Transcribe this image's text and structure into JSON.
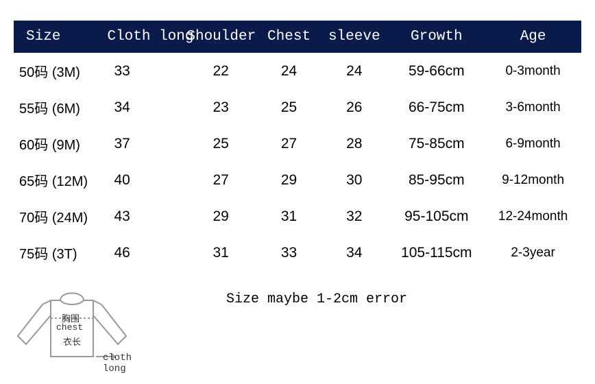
{
  "table": {
    "header_bg": "#0a1a4a",
    "header_fg": "#ffffff",
    "body_fg": "#000000",
    "columns": [
      "Size",
      "Cloth long",
      "Shoulder",
      "Chest",
      "sleeve",
      "Growth",
      "Age"
    ],
    "rows": [
      {
        "size_code": "50码",
        "size_alt": "(3M)",
        "cloth_long": "33",
        "shoulder": "22",
        "chest": "24",
        "sleeve": "24",
        "growth": "59-66cm",
        "age": "0-3month"
      },
      {
        "size_code": "55码",
        "size_alt": "(6M)",
        "cloth_long": "34",
        "shoulder": "23",
        "chest": "25",
        "sleeve": "26",
        "growth": "66-75cm",
        "age": "3-6month"
      },
      {
        "size_code": "60码",
        "size_alt": "(9M)",
        "cloth_long": "37",
        "shoulder": "25",
        "chest": "27",
        "sleeve": "28",
        "growth": "75-85cm",
        "age": "6-9month"
      },
      {
        "size_code": "65码",
        "size_alt": "(12M)",
        "cloth_long": "40",
        "shoulder": "27",
        "chest": "29",
        "sleeve": "30",
        "growth": "85-95cm",
        "age": "9-12month"
      },
      {
        "size_code": "70码",
        "size_alt": "(24M)",
        "cloth_long": "43",
        "shoulder": "29",
        "chest": "31",
        "sleeve": "32",
        "growth": "95-105cm",
        "age": "12-24month"
      },
      {
        "size_code": "75码",
        "size_alt": "(3T)",
        "cloth_long": "46",
        "shoulder": "31",
        "chest": "33",
        "sleeve": "34",
        "growth": "105-115cm",
        "age": "2-3year"
      }
    ]
  },
  "note": "Size maybe 1-2cm error",
  "diagram": {
    "stroke": "#999999",
    "fill": "#ffffff",
    "label_xiongwei": "胸围",
    "label_chest_en": "chest",
    "label_yichang": "衣长",
    "label_clothlong_en": "cloth long"
  }
}
